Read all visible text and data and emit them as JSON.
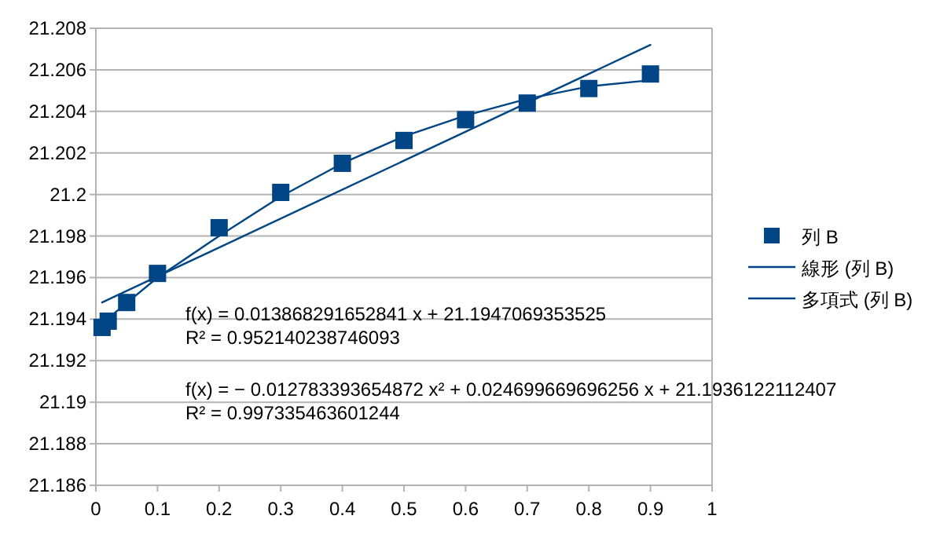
{
  "chart_data": {
    "type": "scatter",
    "xlim": [
      0,
      1
    ],
    "xticks": [
      0,
      0.1,
      0.2,
      0.3,
      0.4,
      0.5,
      0.6,
      0.7,
      0.8,
      0.9,
      1
    ],
    "ylim": [
      21.186,
      21.208
    ],
    "yticks": [
      21.186,
      21.188,
      21.19,
      21.192,
      21.194,
      21.196,
      21.198,
      21.2,
      21.202,
      21.204,
      21.206,
      21.208
    ],
    "grid": "y",
    "legend": "right",
    "series": [
      {
        "name": "列 B",
        "type": "scatter",
        "marker": "square",
        "color": "#004586",
        "x": [
          0.01,
          0.02,
          0.05,
          0.1,
          0.2,
          0.3,
          0.4,
          0.5,
          0.6,
          0.7,
          0.8,
          0.9
        ],
        "values": [
          21.1936,
          21.1939,
          21.1948,
          21.1962,
          21.1984,
          21.2001,
          21.2015,
          21.2026,
          21.2036,
          21.2044,
          21.2051,
          21.2058
        ]
      },
      {
        "name": "線形 (列 B)",
        "type": "line",
        "marker": "none",
        "color": "#004586",
        "x": [
          0.01,
          0.9
        ],
        "values": [
          21.1948,
          21.2072
        ]
      },
      {
        "name": "多項式 (列 B)",
        "type": "line",
        "marker": "none",
        "color": "#004586",
        "x": [
          0.01,
          0.1,
          0.2,
          0.3,
          0.4,
          0.5,
          0.6,
          0.7,
          0.8,
          0.9
        ],
        "values": [
          21.1938,
          21.196,
          21.198,
          21.1999,
          21.2015,
          21.2028,
          21.2038,
          21.2046,
          21.2052,
          21.2055
        ]
      }
    ],
    "annotations": [
      "f(x) = 0.013868291652841 x + 21.1947069353525",
      "R² = 0.952140238746093",
      "f(x) = − 0.012783393654872 x² + 0.024699669696256 x + 21.1936122112407",
      "R² = 0.997335463601244"
    ]
  }
}
